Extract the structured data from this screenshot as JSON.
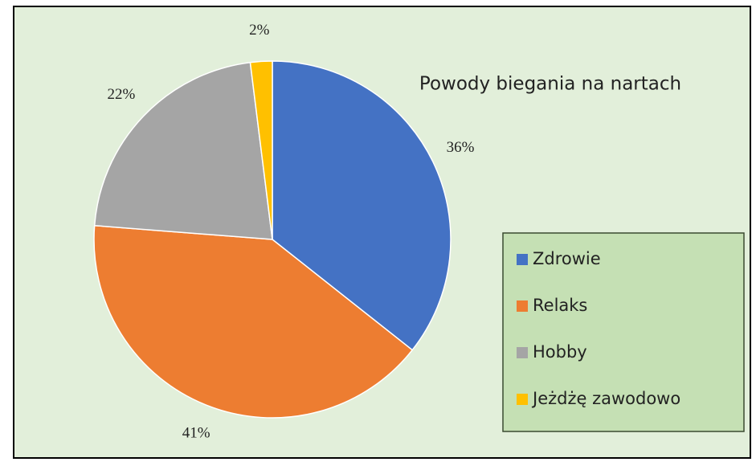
{
  "chart_data": {
    "type": "pie",
    "title": "Powody biegania na nartach",
    "categories": [
      "Zdrowie",
      "Relaks",
      "Hobby",
      "Jeżdżę zawodowo"
    ],
    "values": [
      36,
      41,
      22,
      2
    ],
    "value_labels": [
      "36%",
      "41%",
      "22%",
      "2%"
    ],
    "colors": [
      "#4472c4",
      "#ed7d31",
      "#a5a5a5",
      "#ffc000"
    ],
    "legend": "right"
  }
}
